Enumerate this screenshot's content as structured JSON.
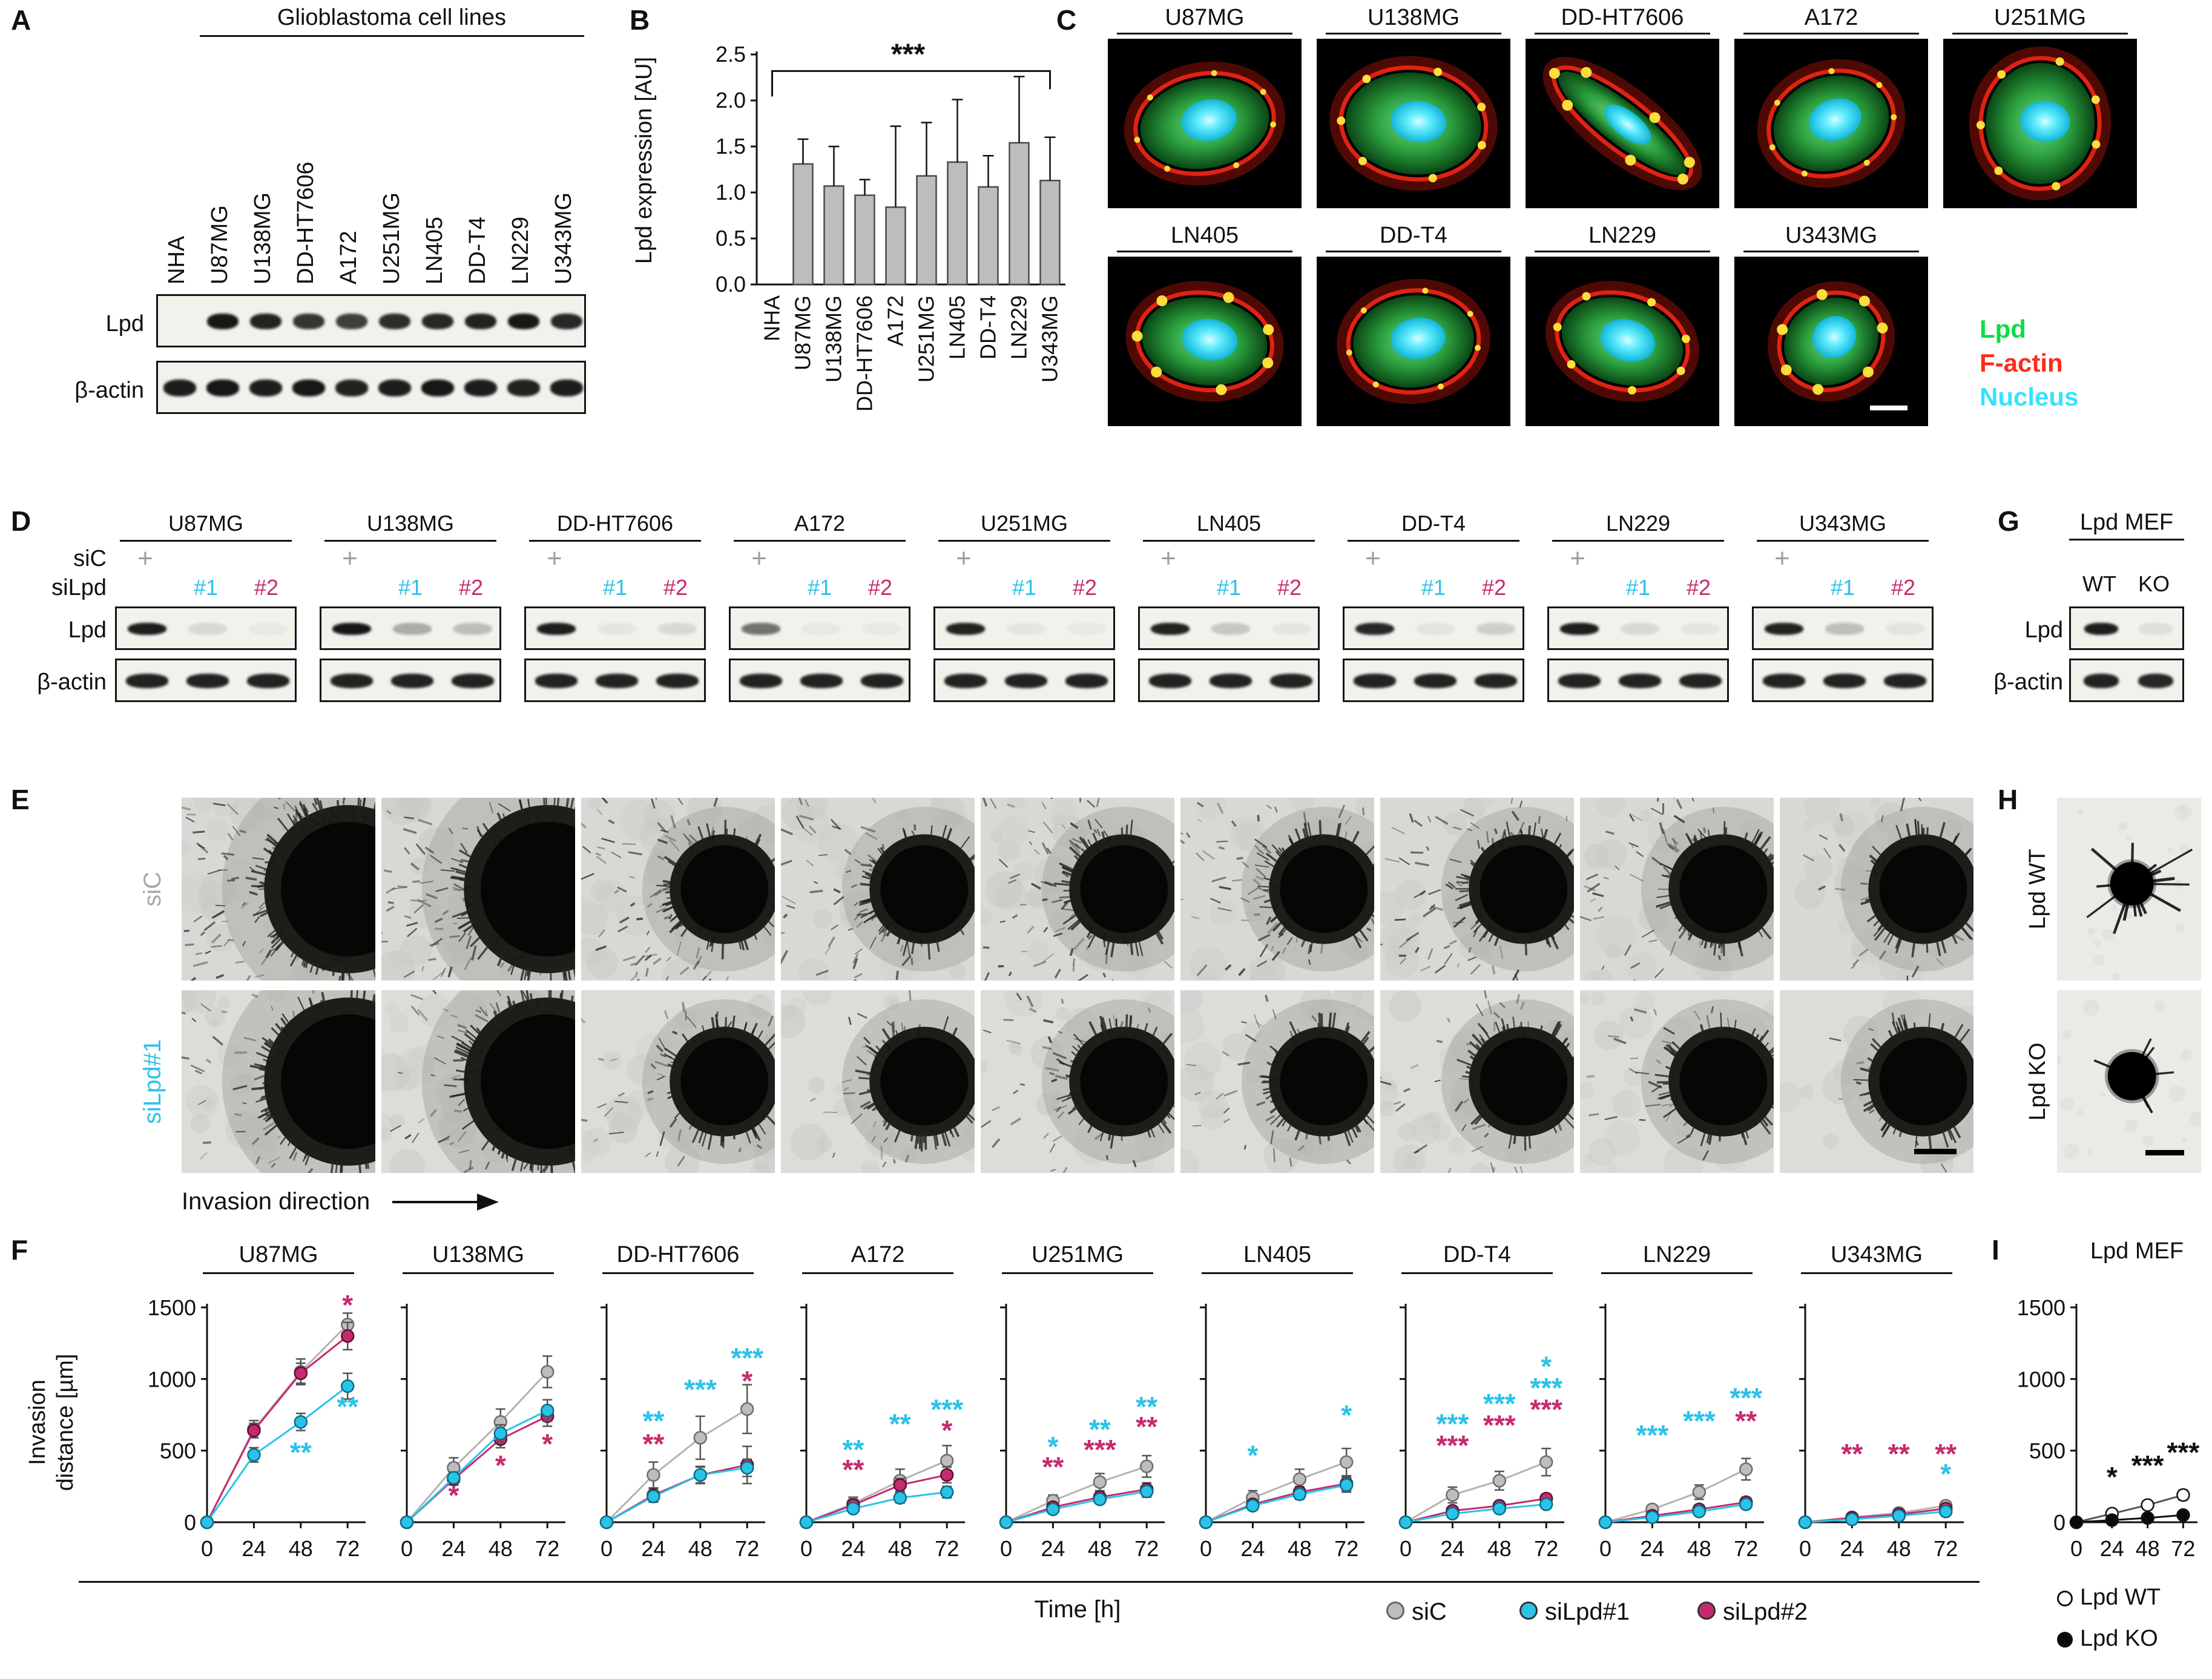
{
  "colors": {
    "siC": "#b3b3b3",
    "siC_fill": "#bdbdbd",
    "siC_stroke": "#6e6e6e",
    "siLpd1": "#2bc2e8",
    "siLpd2": "#c62a6e",
    "plus_gray": "#9f9f9f",
    "bar_fill": "#bdbdbd",
    "bar_stroke": "#4a4a4a",
    "lpd_green": "#0ddd45",
    "factin_red": "#ff2a18",
    "nucleus_cyan": "#35e2ff",
    "wt_fill": "#ffffff",
    "ko_fill": "#0a0a0a",
    "black": "#111111"
  },
  "cell_lines_all": [
    "NHA",
    "U87MG",
    "U138MG",
    "DD-HT7606",
    "A172",
    "U251MG",
    "LN405",
    "DD-T4",
    "LN229",
    "U343MG"
  ],
  "gbm_lines": [
    "U87MG",
    "U138MG",
    "DD-HT7606",
    "A172",
    "U251MG",
    "LN405",
    "DD-T4",
    "LN229",
    "U343MG"
  ],
  "panelA": {
    "label": "A",
    "header": "Glioblastoma cell lines",
    "row_lpd": "Lpd",
    "row_actin": "β-actin",
    "lpd_bands": [
      0,
      0.95,
      0.9,
      0.82,
      0.78,
      0.85,
      0.88,
      0.9,
      0.95,
      0.88
    ],
    "actin_bands": [
      0.92,
      0.95,
      0.92,
      0.95,
      0.9,
      0.92,
      0.95,
      0.92,
      0.9,
      0.92
    ]
  },
  "panelB": {
    "label": "B",
    "chart_data": {
      "type": "bar",
      "ylabel": "Lpd expression [AU]",
      "categories": [
        "NHA",
        "U87MG",
        "U138MG",
        "DD-HT7606",
        "A172",
        "U251MG",
        "LN405",
        "DD-T4",
        "LN229",
        "U343MG"
      ],
      "values": [
        0,
        1.31,
        1.07,
        0.97,
        0.84,
        1.18,
        1.33,
        1.06,
        1.54,
        1.13
      ],
      "errors": [
        0,
        0.27,
        0.43,
        0.17,
        0.88,
        0.58,
        0.68,
        0.34,
        0.72,
        0.47
      ],
      "ylim": [
        0,
        2.5
      ],
      "yticks": [
        0,
        0.5,
        1,
        1.5,
        2,
        2.5
      ],
      "significance": "***",
      "grid": false
    }
  },
  "panelC": {
    "label": "C",
    "top_row": [
      "U87MG",
      "U138MG",
      "DD-HT7606",
      "A172",
      "U251MG"
    ],
    "bottom_row": [
      "LN405",
      "DD-T4",
      "LN229",
      "U343MG"
    ],
    "legend": [
      {
        "label": "Lpd",
        "color_key": "lpd_green"
      },
      {
        "label": "F-actin",
        "color_key": "factin_red"
      },
      {
        "label": "Nucleus",
        "color_key": "nucleus_cyan"
      }
    ]
  },
  "panelD": {
    "label": "D",
    "sic_label": "siC",
    "silpd_label": "siLpd",
    "plus": "+",
    "hash1": "#1",
    "hash2": "#2",
    "row_lpd": "Lpd",
    "row_actin": "β-actin",
    "actin": [
      0.9,
      0.9,
      0.9
    ],
    "groups": [
      {
        "name": "U87MG",
        "lpd": [
          0.92,
          0.1,
          0.04
        ]
      },
      {
        "name": "U138MG",
        "lpd": [
          0.95,
          0.3,
          0.22
        ]
      },
      {
        "name": "DD-HT7606",
        "lpd": [
          0.92,
          0.05,
          0.1
        ]
      },
      {
        "name": "A172",
        "lpd": [
          0.55,
          0.04,
          0.04
        ]
      },
      {
        "name": "U251MG",
        "lpd": [
          0.9,
          0.05,
          0.04
        ]
      },
      {
        "name": "LN405",
        "lpd": [
          0.9,
          0.18,
          0.05
        ]
      },
      {
        "name": "DD-T4",
        "lpd": [
          0.88,
          0.06,
          0.15
        ]
      },
      {
        "name": "LN229",
        "lpd": [
          0.92,
          0.1,
          0.05
        ]
      },
      {
        "name": "U343MG",
        "lpd": [
          0.9,
          0.22,
          0.06
        ]
      }
    ]
  },
  "panelE": {
    "label": "E",
    "row1_label": "siC",
    "row2_label": "siLpd#1",
    "direction_label": "Invasion direction"
  },
  "panelF": {
    "label": "F",
    "ylabel_line1": "Invasion",
    "ylabel_line2": "distance [µm]",
    "chart_data": {
      "type": "line",
      "x": [
        0,
        24,
        48,
        72
      ],
      "xlabel": "Time [h]",
      "ylim": [
        0,
        1500
      ],
      "yticks": [
        0,
        500,
        1000,
        1500
      ],
      "series_names": [
        "siC",
        "siLpd#1",
        "siLpd#2"
      ],
      "charts": [
        {
          "title": "U87MG",
          "siC": [
            0,
            650,
            1050,
            1380
          ],
          "siC_err": [
            0,
            60,
            90,
            80
          ],
          "siLpd1": [
            0,
            470,
            700,
            950
          ],
          "siLpd1_err": [
            0,
            50,
            60,
            90
          ],
          "siLpd2": [
            0,
            640,
            1040,
            1300
          ],
          "siLpd2_err": [
            0,
            50,
            70,
            95
          ],
          "sig": [
            {
              "x": 72,
              "y": 1450,
              "text": "*",
              "series": "siLpd2"
            },
            {
              "x": 48,
              "y": 420,
              "text": "**",
              "series": "siLpd1"
            },
            {
              "x": 72,
              "y": 740,
              "text": "**",
              "series": "siLpd1"
            }
          ]
        },
        {
          "title": "U138MG",
          "siC": [
            0,
            380,
            700,
            1050
          ],
          "siC_err": [
            0,
            70,
            90,
            110
          ],
          "siLpd1": [
            0,
            310,
            620,
            780
          ],
          "siLpd1_err": [
            0,
            40,
            60,
            75
          ],
          "siLpd2": [
            0,
            300,
            580,
            740
          ],
          "siLpd2_err": [
            0,
            40,
            60,
            70
          ],
          "sig": [
            {
              "x": 24,
              "y": 120,
              "text": "*",
              "series": "siLpd2"
            },
            {
              "x": 48,
              "y": 330,
              "text": "*",
              "series": "siLpd2"
            },
            {
              "x": 72,
              "y": 480,
              "text": "*",
              "series": "siLpd2"
            }
          ]
        },
        {
          "title": "DD-HT7606",
          "siC": [
            0,
            330,
            590,
            790
          ],
          "siC_err": [
            0,
            90,
            150,
            170
          ],
          "siLpd1": [
            0,
            180,
            330,
            380
          ],
          "siLpd1_err": [
            0,
            40,
            55,
            60
          ],
          "siLpd2": [
            0,
            190,
            330,
            400
          ],
          "siLpd2_err": [
            0,
            45,
            60,
            130
          ],
          "sig": [
            {
              "x": 24,
              "y": 640,
              "text": "**",
              "series": "siLpd1"
            },
            {
              "x": 24,
              "y": 480,
              "text": "**",
              "series": "siLpd2"
            },
            {
              "x": 48,
              "y": 860,
              "text": "***",
              "series": "siLpd1"
            },
            {
              "x": 72,
              "y": 1080,
              "text": "***",
              "series": "siLpd1"
            },
            {
              "x": 72,
              "y": 920,
              "text": "*",
              "series": "siLpd2"
            }
          ]
        },
        {
          "title": "A172",
          "siC": [
            0,
            130,
            290,
            430
          ],
          "siC_err": [
            0,
            45,
            80,
            105
          ],
          "siLpd1": [
            0,
            95,
            170,
            210
          ],
          "siLpd1_err": [
            0,
            25,
            35,
            40
          ],
          "siLpd2": [
            0,
            120,
            260,
            330
          ],
          "siLpd2_err": [
            0,
            30,
            45,
            55
          ],
          "sig": [
            {
              "x": 24,
              "y": 440,
              "text": "**",
              "series": "siLpd1"
            },
            {
              "x": 24,
              "y": 300,
              "text": "**",
              "series": "siLpd2"
            },
            {
              "x": 48,
              "y": 620,
              "text": "**",
              "series": "siLpd1"
            },
            {
              "x": 72,
              "y": 720,
              "text": "***",
              "series": "siLpd1"
            },
            {
              "x": 72,
              "y": 575,
              "text": "*",
              "series": "siLpd2"
            }
          ]
        },
        {
          "title": "U251MG",
          "siC": [
            0,
            150,
            280,
            390
          ],
          "siC_err": [
            0,
            40,
            60,
            75
          ],
          "siLpd1": [
            0,
            90,
            160,
            215
          ],
          "siLpd1_err": [
            0,
            20,
            30,
            40
          ],
          "siLpd2": [
            0,
            105,
            175,
            230
          ],
          "siLpd2_err": [
            0,
            25,
            35,
            45
          ],
          "sig": [
            {
              "x": 24,
              "y": 460,
              "text": "*",
              "series": "siLpd1"
            },
            {
              "x": 24,
              "y": 320,
              "text": "**",
              "series": "siLpd2"
            },
            {
              "x": 48,
              "y": 580,
              "text": "**",
              "series": "siLpd1"
            },
            {
              "x": 48,
              "y": 440,
              "text": "***",
              "series": "siLpd2"
            },
            {
              "x": 72,
              "y": 740,
              "text": "**",
              "series": "siLpd1"
            },
            {
              "x": 72,
              "y": 600,
              "text": "**",
              "series": "siLpd2"
            }
          ]
        },
        {
          "title": "LN405",
          "siC": [
            0,
            170,
            300,
            420
          ],
          "siC_err": [
            0,
            50,
            70,
            95
          ],
          "siLpd1": [
            0,
            115,
            195,
            260
          ],
          "siLpd1_err": [
            0,
            25,
            35,
            50
          ],
          "siLpd2": [
            0,
            125,
            210,
            270
          ],
          "siLpd2_err": [
            0,
            28,
            38,
            50
          ],
          "sig": [
            {
              "x": 24,
              "y": 400,
              "text": "*",
              "series": "siLpd1"
            },
            {
              "x": 72,
              "y": 680,
              "text": "*",
              "series": "siLpd1"
            }
          ]
        },
        {
          "title": "DD-T4",
          "siC": [
            0,
            190,
            290,
            420
          ],
          "siC_err": [
            0,
            55,
            65,
            95
          ],
          "siLpd1": [
            0,
            60,
            95,
            125
          ],
          "siLpd1_err": [
            0,
            15,
            20,
            28
          ],
          "siLpd2": [
            0,
            80,
            115,
            165
          ],
          "siLpd2_err": [
            0,
            20,
            25,
            32
          ],
          "sig": [
            {
              "x": 24,
              "y": 620,
              "text": "***",
              "series": "siLpd1"
            },
            {
              "x": 24,
              "y": 470,
              "text": "***",
              "series": "siLpd2"
            },
            {
              "x": 48,
              "y": 760,
              "text": "***",
              "series": "siLpd1"
            },
            {
              "x": 48,
              "y": 610,
              "text": "***",
              "series": "siLpd2"
            },
            {
              "x": 72,
              "y": 1020,
              "text": "*",
              "series": "siLpd1"
            },
            {
              "x": 72,
              "y": 870,
              "text": "***",
              "series": "siLpd1"
            },
            {
              "x": 72,
              "y": 720,
              "text": "***",
              "series": "siLpd2"
            }
          ]
        },
        {
          "title": "LN229",
          "siC": [
            0,
            90,
            210,
            370
          ],
          "siC_err": [
            0,
            30,
            50,
            75
          ],
          "siLpd1": [
            0,
            35,
            75,
            125
          ],
          "siLpd1_err": [
            0,
            10,
            20,
            28
          ],
          "siLpd2": [
            0,
            45,
            90,
            140
          ],
          "siLpd2_err": [
            0,
            12,
            22,
            32
          ],
          "sig": [
            {
              "x": 24,
              "y": 540,
              "text": "***",
              "series": "siLpd1"
            },
            {
              "x": 48,
              "y": 640,
              "text": "***",
              "series": "siLpd1"
            },
            {
              "x": 72,
              "y": 800,
              "text": "***",
              "series": "siLpd1"
            },
            {
              "x": 72,
              "y": 640,
              "text": "**",
              "series": "siLpd2"
            }
          ]
        },
        {
          "title": "U343MG",
          "siC": [
            0,
            35,
            65,
            115
          ],
          "siC_err": [
            0,
            15,
            22,
            32
          ],
          "siLpd1": [
            0,
            20,
            45,
            75
          ],
          "siLpd1_err": [
            0,
            8,
            14,
            20
          ],
          "siLpd2": [
            0,
            30,
            55,
            95
          ],
          "siLpd2_err": [
            0,
            10,
            16,
            22
          ],
          "sig": [
            {
              "x": 24,
              "y": 410,
              "text": "**",
              "series": "siLpd2"
            },
            {
              "x": 48,
              "y": 410,
              "text": "**",
              "series": "siLpd2"
            },
            {
              "x": 72,
              "y": 410,
              "text": "**",
              "series": "siLpd2"
            },
            {
              "x": 72,
              "y": 270,
              "text": "*",
              "series": "siLpd1"
            }
          ]
        }
      ]
    }
  },
  "panelG": {
    "label": "G",
    "title": "Lpd MEF",
    "lane1": "WT",
    "lane2": "KO",
    "row_lpd": "Lpd",
    "row_actin": "β-actin",
    "lpd_bands": [
      0.92,
      0.08
    ],
    "actin_bands": [
      0.9,
      0.88
    ]
  },
  "panelH": {
    "label": "H",
    "row1_label": "Lpd WT",
    "row2_label": "Lpd KO"
  },
  "panelI": {
    "label": "I",
    "title": "Lpd MEF",
    "chart_data": {
      "type": "line",
      "x": [
        0,
        24,
        48,
        72
      ],
      "ylim": [
        0,
        1500
      ],
      "yticks": [
        0,
        500,
        1000,
        1500
      ],
      "series": [
        {
          "name": "Lpd WT",
          "values": [
            0,
            60,
            120,
            190
          ],
          "errors": [
            0,
            15,
            25,
            35
          ]
        },
        {
          "name": "Lpd KO",
          "values": [
            0,
            15,
            30,
            50
          ],
          "errors": [
            0,
            8,
            12,
            18
          ]
        }
      ],
      "significance": [
        {
          "x": 24,
          "y": 250,
          "text": "*"
        },
        {
          "x": 48,
          "y": 330,
          "text": "***"
        },
        {
          "x": 72,
          "y": 420,
          "text": "***"
        }
      ]
    }
  },
  "legend": {
    "time_label": "Time [h]",
    "items": [
      {
        "label": "siC",
        "key": "siC"
      },
      {
        "label": "siLpd#1",
        "key": "siLpd1"
      },
      {
        "label": "siLpd#2",
        "key": "siLpd2"
      }
    ],
    "mef_items": [
      {
        "label": "Lpd WT",
        "key": "wt"
      },
      {
        "label": "Lpd KO",
        "key": "ko"
      }
    ]
  }
}
